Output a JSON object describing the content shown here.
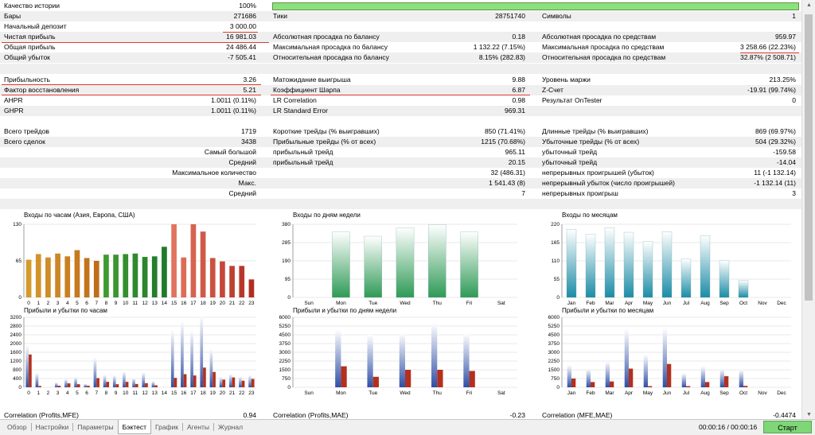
{
  "stats": {
    "history_quality_label": "Качество истории",
    "history_quality_value": "100%",
    "bars_label": "Бары",
    "bars_value": "271686",
    "ticks_label": "Тики",
    "ticks_value": "28751740",
    "symbols_label": "Символы",
    "symbols_value": "1",
    "initial_deposit_label": "Начальный депозит",
    "initial_deposit_value": "3 000.00",
    "net_profit_label": "Чистая прибыль",
    "net_profit_value": "16 981.03",
    "abs_dd_balance_label": "Абсолютная просадка по балансу",
    "abs_dd_balance_value": "0.18",
    "abs_dd_equity_label": "Абсолютная просадка по средствам",
    "abs_dd_equity_value": "959.97",
    "gross_profit_label": "Общая прибыль",
    "gross_profit_value": "24 486.44",
    "max_dd_balance_label": "Максимальная просадка по балансу",
    "max_dd_balance_value": "1 132.22 (7.15%)",
    "max_dd_equity_label": "Максимальная просадка по средствам",
    "max_dd_equity_value": "3 258.66 (22.23%)",
    "gross_loss_label": "Общий убыток",
    "gross_loss_value": "-7 505.41",
    "rel_dd_balance_label": "Относительная просадка по балансу",
    "rel_dd_balance_value": "8.15% (282.83)",
    "rel_dd_equity_label": "Относительная просадка по средствам",
    "rel_dd_equity_value": "32.87% (2 508.71)",
    "profitability_label": "Прибыльность",
    "profitability_value": "3.26",
    "expected_payoff_label": "Матожидание выигрыша",
    "expected_payoff_value": "9.88",
    "margin_level_label": "Уровень маржи",
    "margin_level_value": "213.25%",
    "recovery_factor_label": "Фактор восстановления",
    "recovery_factor_value": "5.21",
    "sharpe_label": "Коэффициент Шарпа",
    "sharpe_value": "6.87",
    "zscore_label": "Z-Счет",
    "zscore_value": "-19.91 (99.74%)",
    "ahpr_label": "AHPR",
    "ahpr_value": "1.0011 (0.11%)",
    "lr_corr_label": "LR Correlation",
    "lr_corr_value": "0.98",
    "ontester_label": "Результат OnTester",
    "ontester_value": "0",
    "ghpr_label": "GHPR",
    "ghpr_value": "1.0011 (0.11%)",
    "lr_stderr_label": "LR Standard Error",
    "lr_stderr_value": "969.31",
    "total_trades_label": "Всего трейдов",
    "total_trades_value": "1719",
    "short_trades_label": "Короткие трейды (% выигравших)",
    "short_trades_value": "850 (71.41%)",
    "long_trades_label": "Длинные трейды (% выигравших)",
    "long_trades_value": "869 (69.97%)",
    "total_deals_label": "Всего сделок",
    "total_deals_value": "3438",
    "profit_trades_label": "Прибыльные трейды (% от всех)",
    "profit_trades_value": "1215 (70.68%)",
    "loss_trades_label": "Убыточные трейды (% от всех)",
    "loss_trades_value": "504 (29.32%)",
    "largest_label": "Самый большой",
    "largest_profit_label": "прибыльный трейд",
    "largest_profit_value": "965.11",
    "largest_loss_label": "убыточный трейд",
    "largest_loss_value": "-159.58",
    "average_label": "Средний",
    "average_profit_label": "прибыльный трейд",
    "average_profit_value": "20.15",
    "average_loss_label": "убыточный трейд",
    "average_loss_value": "-14.04",
    "max_count_label": "Максимальное количество",
    "max_consec_wins_value": "32 (486.31)",
    "max_consec_losses_label": "непрерывных проигрышей (убыток)",
    "max_consec_losses_value": "11 (-1 132.14)",
    "max_label": "Макс.",
    "max_consec_profit_value": "1 541.43 (8)",
    "max_consec_loss_label": "непрерывный убыток (число проигрышей)",
    "max_consec_loss_value": "-1 132.14 (11)",
    "avg_label": "Средний",
    "avg_consec_wins_value": "7",
    "avg_consec_losses_label": "непрерывных проигрыш",
    "avg_consec_losses_value": "3"
  },
  "correlations": {
    "profits_mfe_label": "Correlation (Profits,MFE)",
    "profits_mfe_value": "0.94",
    "profits_mae_label": "Correlation (Profits,MAE)",
    "profits_mae_value": "-0.23",
    "mfe_mae_label": "Correlation (MFE,MAE)",
    "mfe_mae_value": "-0.4474"
  },
  "colors": {
    "profit_bar": "#3a5ca8",
    "loss_bar": "#b3301e",
    "quality_bar": "#8ae27a",
    "start_button": "#7ed676",
    "underline": "#e0392b"
  },
  "chart_data": [
    {
      "type": "bar",
      "title": "Входы по часам (Азия, Европа, США)",
      "categories": [
        "0",
        "1",
        "2",
        "3",
        "4",
        "5",
        "6",
        "7",
        "8",
        "9",
        "10",
        "11",
        "12",
        "13",
        "14",
        "15",
        "16",
        "17",
        "18",
        "19",
        "20",
        "21",
        "22",
        "23"
      ],
      "values": [
        67,
        77,
        71,
        78,
        73,
        84,
        70,
        65,
        76,
        76,
        77,
        78,
        72,
        73,
        90,
        130,
        71,
        130,
        117,
        70,
        64,
        56,
        56,
        32
      ],
      "yticks": [
        "130",
        "65",
        "0"
      ],
      "ylim": [
        0,
        130
      ]
    },
    {
      "type": "bar",
      "title": "Входы по дням недели",
      "categories": [
        "Sun",
        "Mon",
        "Tue",
        "Wed",
        "Thu",
        "Fri",
        "Sat"
      ],
      "values": [
        0,
        340,
        318,
        362,
        378,
        340,
        0
      ],
      "yticks": [
        "380",
        "285",
        "190",
        "95",
        "0"
      ],
      "ylim": [
        0,
        380
      ]
    },
    {
      "type": "bar",
      "title": "Входы по месяцам",
      "categories": [
        "Jan",
        "Feb",
        "Mar",
        "Apr",
        "May",
        "Jun",
        "Jul",
        "Aug",
        "Sep",
        "Oct",
        "Nov",
        "Dec"
      ],
      "values": [
        205,
        190,
        210,
        196,
        168,
        198,
        116,
        186,
        111,
        51,
        0,
        0
      ],
      "yticks": [
        "220",
        "165",
        "110",
        "55",
        "0"
      ],
      "ylim": [
        0,
        220
      ]
    },
    {
      "type": "bar",
      "title": "Прибыли и убытки по часам",
      "categories": [
        "0",
        "1",
        "2",
        "3",
        "4",
        "5",
        "6",
        "7",
        "8",
        "9",
        "10",
        "11",
        "12",
        "13",
        "14",
        "15",
        "16",
        "17",
        "18",
        "19",
        "20",
        "21",
        "22",
        "23"
      ],
      "series": [
        {
          "name": "profit",
          "values": [
            1950,
            650,
            0,
            220,
            380,
            470,
            160,
            1370,
            580,
            560,
            720,
            430,
            680,
            280,
            0,
            2640,
            3050,
            2620,
            3300,
            1760,
            480,
            620,
            500,
            560
          ]
        },
        {
          "name": "loss",
          "values": [
            1500,
            60,
            0,
            70,
            180,
            140,
            70,
            420,
            250,
            140,
            250,
            150,
            190,
            90,
            0,
            430,
            600,
            540,
            900,
            700,
            350,
            450,
            300,
            380
          ]
        }
      ],
      "yticks": [
        "3200",
        "2800",
        "2400",
        "2000",
        "1600",
        "1200",
        "800",
        "400",
        "0"
      ],
      "ylim": [
        0,
        3200
      ]
    },
    {
      "type": "bar",
      "title": "Прибыли и убытки по дням недели",
      "categories": [
        "Sun",
        "Mon",
        "Tue",
        "Wed",
        "Thu",
        "Fri",
        "Sat"
      ],
      "series": [
        {
          "name": "profit",
          "values": [
            0,
            4950,
            4500,
            4650,
            5500,
            4600,
            0
          ]
        },
        {
          "name": "loss",
          "values": [
            0,
            1800,
            900,
            1500,
            1500,
            1400,
            0
          ]
        }
      ],
      "yticks": [
        "6000",
        "5250",
        "4500",
        "3750",
        "3000",
        "2250",
        "1500",
        "750",
        "0"
      ],
      "ylim": [
        0,
        6000
      ]
    },
    {
      "type": "bar",
      "title": "Прибыли и убытки по месяцам",
      "categories": [
        "Jan",
        "Feb",
        "Mar",
        "Apr",
        "May",
        "Jun",
        "Jul",
        "Aug",
        "Sep",
        "Oct",
        "Nov",
        "Dec"
      ],
      "series": [
        {
          "name": "profit",
          "values": [
            1900,
            1600,
            2200,
            5000,
            2800,
            5100,
            1200,
            1800,
            1600,
            1500,
            0,
            0
          ]
        },
        {
          "name": "loss",
          "values": [
            750,
            450,
            500,
            1600,
            100,
            2000,
            100,
            450,
            950,
            120,
            0,
            0
          ]
        }
      ],
      "yticks": [
        "6000",
        "5250",
        "4500",
        "3750",
        "3000",
        "2250",
        "1500",
        "750",
        "0"
      ],
      "ylim": [
        0,
        6000
      ]
    }
  ],
  "tabs": [
    {
      "label": "Обзор"
    },
    {
      "label": "Настройки"
    },
    {
      "label": "Параметры"
    },
    {
      "label": "Бэктест"
    },
    {
      "label": "График"
    },
    {
      "label": "Агенты"
    },
    {
      "label": "Журнал"
    }
  ],
  "footer": {
    "timer": "00:00:16 / 00:00:16",
    "start_label": "Старт"
  }
}
